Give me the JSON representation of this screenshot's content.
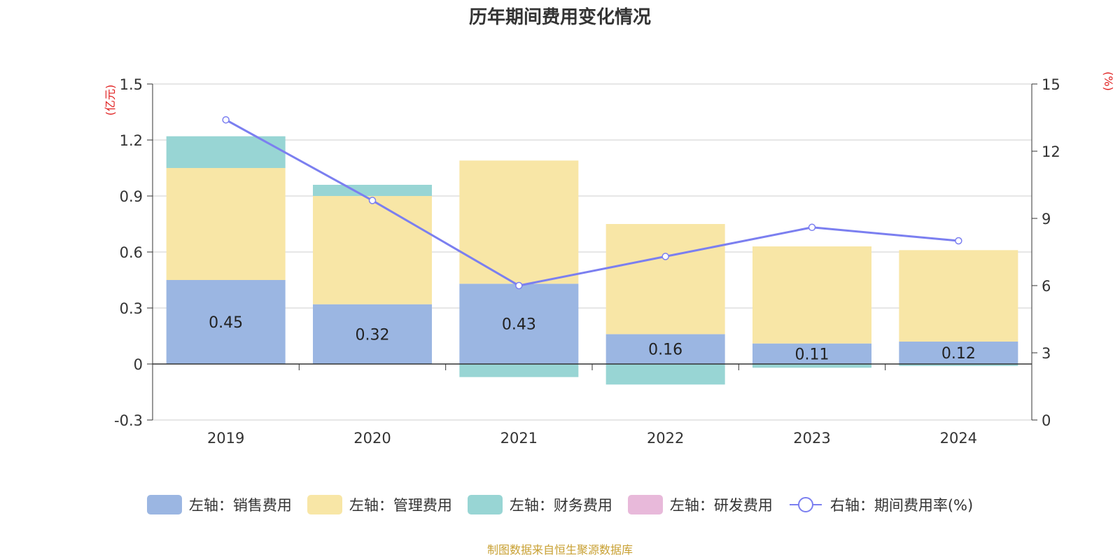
{
  "chart_data": {
    "type": "bar",
    "title": "历年期间费用变化情况",
    "categories": [
      "2019",
      "2020",
      "2021",
      "2022",
      "2023",
      "2024"
    ],
    "left_axis": {
      "unit": "(亿元)",
      "ylim": [
        -0.3,
        1.5
      ],
      "ticks": [
        "1.5",
        "1.2",
        "0.9",
        "0.6",
        "0.3",
        "0",
        "-0.3"
      ]
    },
    "right_axis": {
      "unit": "(%)",
      "ylim": [
        0,
        15
      ],
      "ticks": [
        "15",
        "12",
        "9",
        "6",
        "3",
        "0"
      ]
    },
    "series": [
      {
        "name": "左轴：销售费用",
        "type": "bar",
        "stack": true,
        "color": "#9bb6e2",
        "values": [
          0.45,
          0.32,
          0.43,
          0.16,
          0.11,
          0.12
        ],
        "labels": [
          "0.45",
          "0.32",
          "0.43",
          "0.16",
          "0.11",
          "0.12"
        ]
      },
      {
        "name": "左轴：管理费用",
        "type": "bar",
        "stack": true,
        "color": "#f8e6a6",
        "values": [
          0.6,
          0.58,
          0.66,
          0.59,
          0.52,
          0.49
        ]
      },
      {
        "name": "左轴：财务费用",
        "type": "bar",
        "stack": true,
        "color": "#98d5d4",
        "values": [
          0.17,
          0.06,
          -0.07,
          -0.11,
          -0.02,
          -0.01
        ]
      },
      {
        "name": "左轴：研发费用",
        "type": "bar",
        "stack": true,
        "color": "#e8b9da",
        "values": [
          0,
          0,
          0,
          0,
          0,
          0
        ]
      },
      {
        "name": "右轴：期间费用率(%)",
        "type": "line",
        "axis": "right",
        "color": "#7b7ff0",
        "values": [
          13.4,
          9.8,
          6.0,
          7.3,
          8.6,
          8.0
        ]
      }
    ],
    "grid": true,
    "legend_position": "bottom"
  },
  "source": "制图数据来自恒生聚源数据库"
}
